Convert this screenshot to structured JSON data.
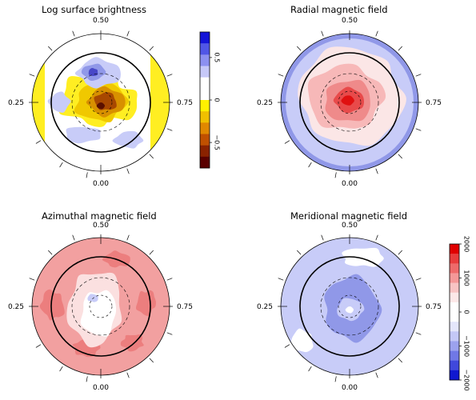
{
  "panels": [
    {
      "title": "Log surface brightness",
      "phase_top": "0.50",
      "phase_left": "0.25",
      "phase_right": "0.75",
      "phase_bottom": "0.00",
      "background": "#ffffff",
      "blobs": [
        {
          "color": "#ffee22",
          "shape": "band_left"
        },
        {
          "color": "#ffee22",
          "shape": "band_right"
        },
        {
          "color": "#ffee22",
          "shape": "center_big"
        },
        {
          "color": "#f0c800",
          "shape": "center_mid"
        },
        {
          "color": "#d89000",
          "shape": "center_inner"
        },
        {
          "color": "#a84800",
          "shape": "center_core"
        },
        {
          "color": "#5a1000",
          "shape": "center_dot"
        },
        {
          "color": "#c8ccf8",
          "shape": "cap_top"
        },
        {
          "color": "#9098e8",
          "shape": "cap_top_inner"
        },
        {
          "color": "#4848c8",
          "shape": "cap_top_dot"
        },
        {
          "color": "#c8ccf8",
          "shape": "patch_left"
        },
        {
          "color": "#c8ccf8",
          "shape": "patch_lower_right"
        },
        {
          "color": "#c8ccf8",
          "shape": "patch_lower_left"
        }
      ]
    },
    {
      "title": "Radial magnetic field",
      "phase_top": "0.50",
      "phase_left": "0.25",
      "phase_right": "0.75",
      "phase_bottom": "0.00",
      "background": "#c8ccf8",
      "blobs": [
        {
          "color": "#9098e8",
          "shape": "outer_ring"
        },
        {
          "color": "#fbe6e6",
          "shape": "disk_big"
        },
        {
          "color": "#f7b8b8",
          "shape": "disk_mid"
        },
        {
          "color": "#ef8a8a",
          "shape": "disk_inner"
        },
        {
          "color": "#e84a4a",
          "shape": "disk_core"
        },
        {
          "color": "#e01010",
          "shape": "disk_dot"
        }
      ]
    },
    {
      "title": "Azimuthal magnetic field",
      "phase_top": "0.50",
      "phase_left": "0.25",
      "phase_right": "0.75",
      "phase_bottom": "0.00",
      "background": "#f2a0a0",
      "blobs": [
        {
          "color": "#ec7e7e",
          "shape": "spots_outer"
        },
        {
          "color": "#fbe0e0",
          "shape": "hole_big"
        },
        {
          "color": "#ffffff",
          "shape": "hole_inner"
        },
        {
          "color": "#c8ccf8",
          "shape": "hole_dot"
        }
      ]
    },
    {
      "title": "Meridional magnetic field",
      "phase_top": "0.50",
      "phase_left": "0.25",
      "phase_right": "0.75",
      "phase_bottom": "0.00",
      "background": "#c8ccf8",
      "blobs": [
        {
          "color": "#ffffff",
          "shape": "white_top"
        },
        {
          "color": "#ffffff",
          "shape": "white_lower_left"
        },
        {
          "color": "#9098e8",
          "shape": "mid_ring"
        },
        {
          "color": "#c8ccf8",
          "shape": "mid_hole"
        },
        {
          "color": "#ffffff",
          "shape": "center_dot"
        }
      ]
    }
  ],
  "colorbars": [
    {
      "id": "brightness",
      "stops": [
        "#1414d8",
        "#5056e6",
        "#8c90f0",
        "#c6c8f8",
        "#ffffff",
        "#ffffff",
        "#fff000",
        "#f0c000",
        "#e08800",
        "#c05000",
        "#8a2200",
        "#5a0000"
      ],
      "ticks": [
        {
          "value": 0.5,
          "label": "0.5"
        },
        {
          "value": 0.0,
          "label": "0"
        },
        {
          "value": -0.5,
          "label": "−0.5"
        }
      ],
      "range": [
        0.8,
        -0.8
      ]
    },
    {
      "id": "field",
      "stops": [
        "#e00000",
        "#e83c3c",
        "#ee6a6a",
        "#f49898",
        "#f8c4c4",
        "#fde8e8",
        "#ffffff",
        "#ffffff",
        "#e4e6fb",
        "#c4c8f6",
        "#9ca2ee",
        "#7078e6",
        "#4048dc",
        "#1018d0"
      ],
      "ticks": [
        {
          "value": 2000,
          "label": "2000"
        },
        {
          "value": 1000,
          "label": "1000"
        },
        {
          "value": 0,
          "label": "0"
        },
        {
          "value": -1000,
          "label": "−1000"
        },
        {
          "value": -2000,
          "label": "−2000"
        }
      ],
      "range": [
        2000,
        -2000
      ]
    }
  ]
}
